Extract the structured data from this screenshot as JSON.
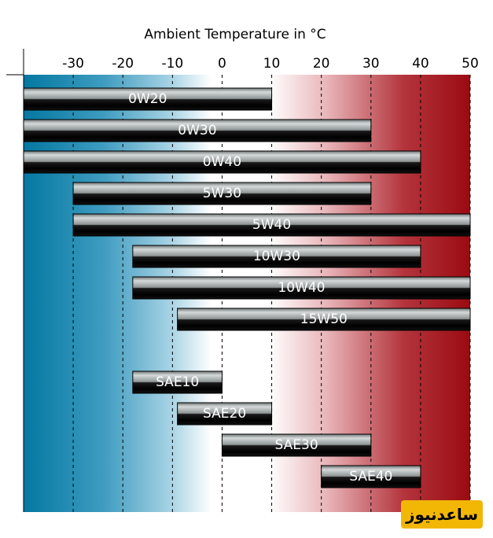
{
  "chart_data": {
    "type": "bar",
    "orientation": "horizontal-range",
    "title": "Ambient Temperature in °C",
    "x_ticks": [
      -30,
      -20,
      -10,
      0,
      10,
      20,
      30,
      40,
      50
    ],
    "xlim": [
      -40,
      50
    ],
    "grid": "dashed-vertical",
    "background_gradient": [
      "#0478a2",
      "#ffffff",
      "#9b0a11"
    ],
    "bar_color": "#8e9494",
    "bars": [
      {
        "name": "0W20",
        "min": -40,
        "max": 10
      },
      {
        "name": "0W30",
        "min": -40,
        "max": 30
      },
      {
        "name": "0W40",
        "min": -40,
        "max": 40
      },
      {
        "name": "5W30",
        "min": -30,
        "max": 30
      },
      {
        "name": "5W40",
        "min": -30,
        "max": 50
      },
      {
        "name": "10W30",
        "min": -18,
        "max": 40
      },
      {
        "name": "10W40",
        "min": -18,
        "max": 50
      },
      {
        "name": "15W50",
        "min": -9,
        "max": 50
      },
      {
        "name": "SAE10",
        "min": -18,
        "max": 0
      },
      {
        "name": "SAE20",
        "min": -9,
        "max": 10
      },
      {
        "name": "SAE30",
        "min": 0,
        "max": 30
      },
      {
        "name": "SAE40",
        "min": 20,
        "max": 40
      }
    ]
  },
  "watermark": {
    "text": "ساعدنیوز"
  }
}
